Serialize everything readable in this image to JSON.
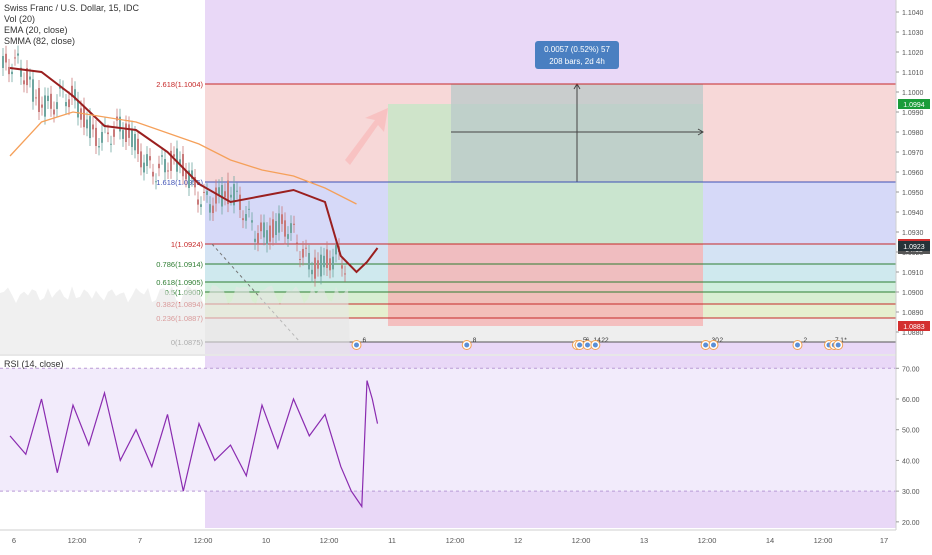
{
  "header": {
    "symbol_line": "Swiss Franc / U.S. Dollar, 15, IDC",
    "indicators": [
      "Vol (20)",
      "EMA (20, close)",
      "SMMA (82, close)"
    ]
  },
  "rsi_pane": {
    "title": "RSI (14, close)"
  },
  "colors": {
    "background": "#ffffff",
    "purple_zone": "#e9d8f7",
    "red_zone": "#f7d8d8",
    "blue_zone": "#d6d9f8",
    "green_zone": "#c8e6c8",
    "gray_box": "#b9c9c9",
    "ema": "#9a1f1f",
    "smma": "#f5a05a",
    "rsi": "#8a2bb0",
    "fib_red": "#c62828",
    "fib_blue": "#3f51b5",
    "fib_green": "#2e7d32"
  },
  "measure_tooltip": {
    "line1": "0.0057 (0.52%) 57",
    "line2": "208 bars, 2d 4h"
  },
  "price_tags": [
    {
      "label": "1.0994",
      "value": 1.0994,
      "color": "#1a9c3a"
    },
    {
      "label": "1.0924",
      "value": 1.0924,
      "color": "#d32f2f"
    },
    {
      "label": "04:18",
      "value": 1.09215,
      "color": "#555555"
    },
    {
      "label": "1.0923",
      "value": 1.0923,
      "color": "#263238"
    },
    {
      "label": "1.0883",
      "value": 1.0883,
      "color": "#d32f2f"
    }
  ],
  "event_markers": [
    {
      "label": "6",
      "date": "Jun 10 2019 18:00"
    },
    {
      "label": "8",
      "date": "Jun 11 2019 15:00"
    },
    {
      "label": "5",
      "date": "Jun 12 2019 12:00"
    },
    {
      "label": "6",
      "date": "Jun 12 2019 12:30"
    },
    {
      "label": "14",
      "date": "Jun 12 2019 14:00"
    },
    {
      "label": "22",
      "date": "Jun 12 2019 15:30"
    },
    {
      "label": "30",
      "date": "Jun 13 2019 12:30"
    },
    {
      "label": "2",
      "date": "Jun 13 2019 14:00"
    },
    {
      "label": "2",
      "date": "Jun 14 2019 06:00"
    },
    {
      "label": "7",
      "date": "Jun 14 2019 12:00"
    },
    {
      "label": "1",
      "date": "Jun 14 2019 13:00"
    },
    {
      "label": "*",
      "date": "Jun 14 2019 13:45"
    }
  ],
  "chart_data": [
    {
      "type": "line",
      "title": "Swiss Franc / U.S. Dollar, 15, IDC",
      "x_axis": {
        "tick_labels": [
          "6",
          "12:00",
          "7",
          "12:00",
          "10",
          "12:00",
          "11",
          "12:00",
          "12",
          "12:00",
          "13",
          "12:00",
          "14",
          "12:00",
          "17"
        ],
        "range": [
          "Jun 6 2019 00:00",
          "Jun 17 2019 00:00"
        ]
      },
      "y_axis": {
        "position": "right",
        "range": [
          1.0869,
          1.1046
        ],
        "tick_labels": [
          "1.1040",
          "1.1030",
          "1.1020",
          "1.1010",
          "1.1000",
          "1.0990",
          "1.0980",
          "1.0970",
          "1.0960",
          "1.0950",
          "1.0940",
          "1.0930",
          "1.0920",
          "1.0910",
          "1.0900",
          "1.0890",
          "1.0880",
          "1.0870"
        ]
      },
      "series": [
        {
          "name": "EMA (20, close)",
          "x": [
            "Jun 6 00:00",
            "Jun 6 06:00",
            "Jun 6 12:00",
            "Jun 6 18:00",
            "Jun 7 00:00",
            "Jun 7 06:00",
            "Jun 7 12:00",
            "Jun 7 18:00",
            "Jun 10 00:00",
            "Jun 10 06:00",
            "Jun 10 12:00",
            "Jun 10 15:00",
            "Jun 10 18:00",
            "Jun 10 20:00",
            "Jun 10 22:00"
          ],
          "y": [
            1.1012,
            1.101,
            1.0998,
            1.0983,
            1.0981,
            1.097,
            1.0954,
            1.0945,
            1.0948,
            1.0951,
            1.0945,
            1.0918,
            1.091,
            1.0915,
            1.0922
          ]
        },
        {
          "name": "SMMA (82, close)",
          "x": [
            "Jun 6 00:00",
            "Jun 6 06:00",
            "Jun 6 12:00",
            "Jun 7 00:00",
            "Jun 7 12:00",
            "Jun 7 18:00",
            "Jun 10 00:00",
            "Jun 10 06:00",
            "Jun 10 12:00",
            "Jun 10 18:00"
          ],
          "y": [
            1.0968,
            1.0985,
            1.099,
            1.0985,
            1.0974,
            1.0966,
            1.0961,
            1.0958,
            1.0952,
            1.0944
          ]
        }
      ],
      "fibonacci": [
        {
          "label": "2.618(1.1004)",
          "level": 2.618,
          "price": 1.1004
        },
        {
          "label": "1.618(1.0955)",
          "level": 1.618,
          "price": 1.0955
        },
        {
          "label": "1(1.0924)",
          "level": 1,
          "price": 1.0924
        },
        {
          "label": "0.786(1.0914)",
          "level": 0.786,
          "price": 1.0914
        },
        {
          "label": "0.618(1.0905)",
          "level": 0.618,
          "price": 1.0905
        },
        {
          "label": "0.5(1.0900)",
          "level": 0.5,
          "price": 1.09
        },
        {
          "label": "0.382(1.0894)",
          "level": 0.382,
          "price": 1.0894
        },
        {
          "label": "0.236(1.0887)",
          "level": 0.236,
          "price": 1.0887
        },
        {
          "label": "0(1.0875)",
          "level": 0,
          "price": 1.0875
        }
      ],
      "position_tool": {
        "entry": 1.0924,
        "target": 1.0994,
        "stop": 1.0883,
        "start": "Jun 11 00:00",
        "end": "Jun 13 12:00"
      },
      "measure": {
        "from": 1.0937,
        "to": 1.0994,
        "start": "Jun 11 12:00",
        "end": "Jun 13 12:00"
      }
    },
    {
      "type": "line",
      "title": "RSI (14, close)",
      "y_axis": {
        "range": [
          18,
          74
        ],
        "tick_labels": [
          "70.00",
          "60.00",
          "50.00",
          "40.00",
          "30.00",
          "20.00"
        ]
      },
      "bands": {
        "upper": 70,
        "lower": 30
      },
      "series": [
        {
          "name": "RSI (14, close)",
          "x": [
            "Jun 6 00:00",
            "Jun 6 03:00",
            "Jun 6 06:00",
            "Jun 6 09:00",
            "Jun 6 12:00",
            "Jun 6 15:00",
            "Jun 6 18:00",
            "Jun 6 21:00",
            "Jun 7 00:00",
            "Jun 7 03:00",
            "Jun 7 06:00",
            "Jun 7 09:00",
            "Jun 7 12:00",
            "Jun 7 15:00",
            "Jun 7 18:00",
            "Jun 7 21:00",
            "Jun 10 00:00",
            "Jun 10 03:00",
            "Jun 10 06:00",
            "Jun 10 09:00",
            "Jun 10 12:00",
            "Jun 10 15:00",
            "Jun 10 17:00",
            "Jun 10 19:00",
            "Jun 10 20:00",
            "Jun 10 21:00",
            "Jun 10 22:00"
          ],
          "y": [
            48,
            42,
            60,
            36,
            58,
            45,
            62,
            40,
            50,
            38,
            55,
            30,
            52,
            40,
            45,
            35,
            58,
            44,
            60,
            48,
            55,
            38,
            30,
            25,
            66,
            60,
            52
          ]
        }
      ]
    }
  ]
}
